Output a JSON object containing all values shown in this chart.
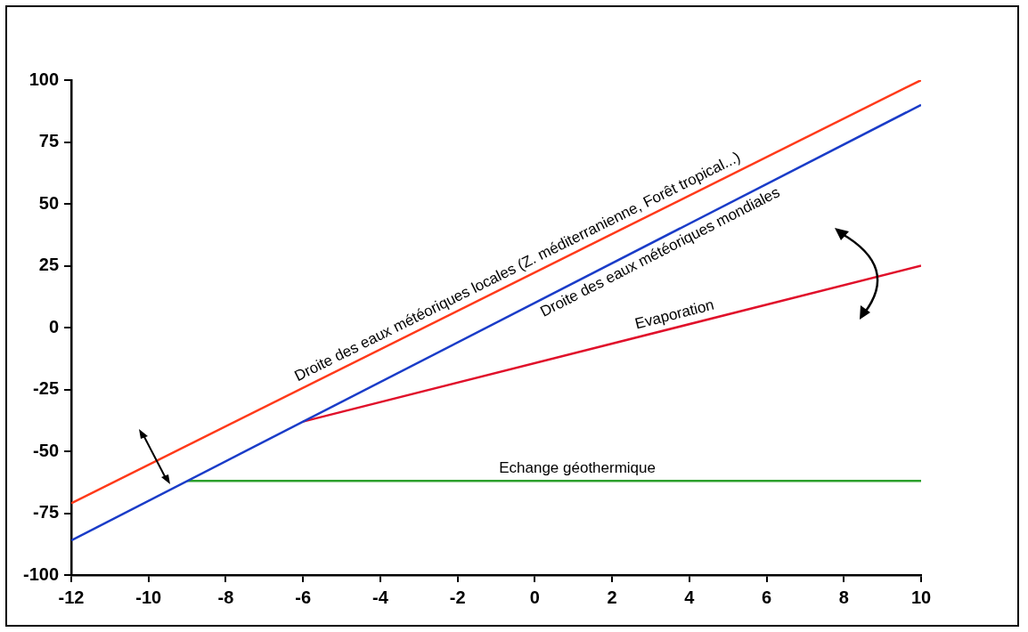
{
  "chart_data": {
    "type": "line",
    "xlim": [
      -12,
      10
    ],
    "ylim": [
      -100,
      100
    ],
    "xticks": [
      -12,
      -10,
      -8,
      -6,
      -4,
      -2,
      0,
      2,
      4,
      6,
      8,
      10
    ],
    "yticks": [
      -100,
      -75,
      -50,
      -25,
      0,
      25,
      50,
      75,
      100
    ],
    "grid": false,
    "legend": false,
    "marker": "none",
    "line_style": "solid",
    "series": [
      {
        "color": "#ff3a1a",
        "x": [
          -12,
          10
        ],
        "values": [
          -71,
          100
        ]
      },
      {
        "color": "#1a3cc8",
        "x": [
          -12,
          10
        ],
        "values": [
          -86,
          90
        ]
      },
      {
        "color": "#e0102a",
        "x": [
          -6,
          10
        ],
        "values": [
          -38,
          25
        ]
      },
      {
        "color": "#2ca02c",
        "x": [
          -9,
          10
        ],
        "values": [
          -62,
          -62
        ]
      }
    ],
    "annotations": [
      {
        "text": "Droite des eaux météoriques locales (Z. méditerranienne, Forêt tropical...)",
        "x": -0.3,
        "y": 19.9
      },
      {
        "text": "Droite des eaux météoriques mondiales",
        "x": 3.1,
        "y": 34.8
      },
      {
        "text": "Evaporation",
        "x": 3.7,
        "y": 0.2
      },
      {
        "text": "Echange géothermique",
        "x": 1.1,
        "y": -62
      }
    ]
  }
}
